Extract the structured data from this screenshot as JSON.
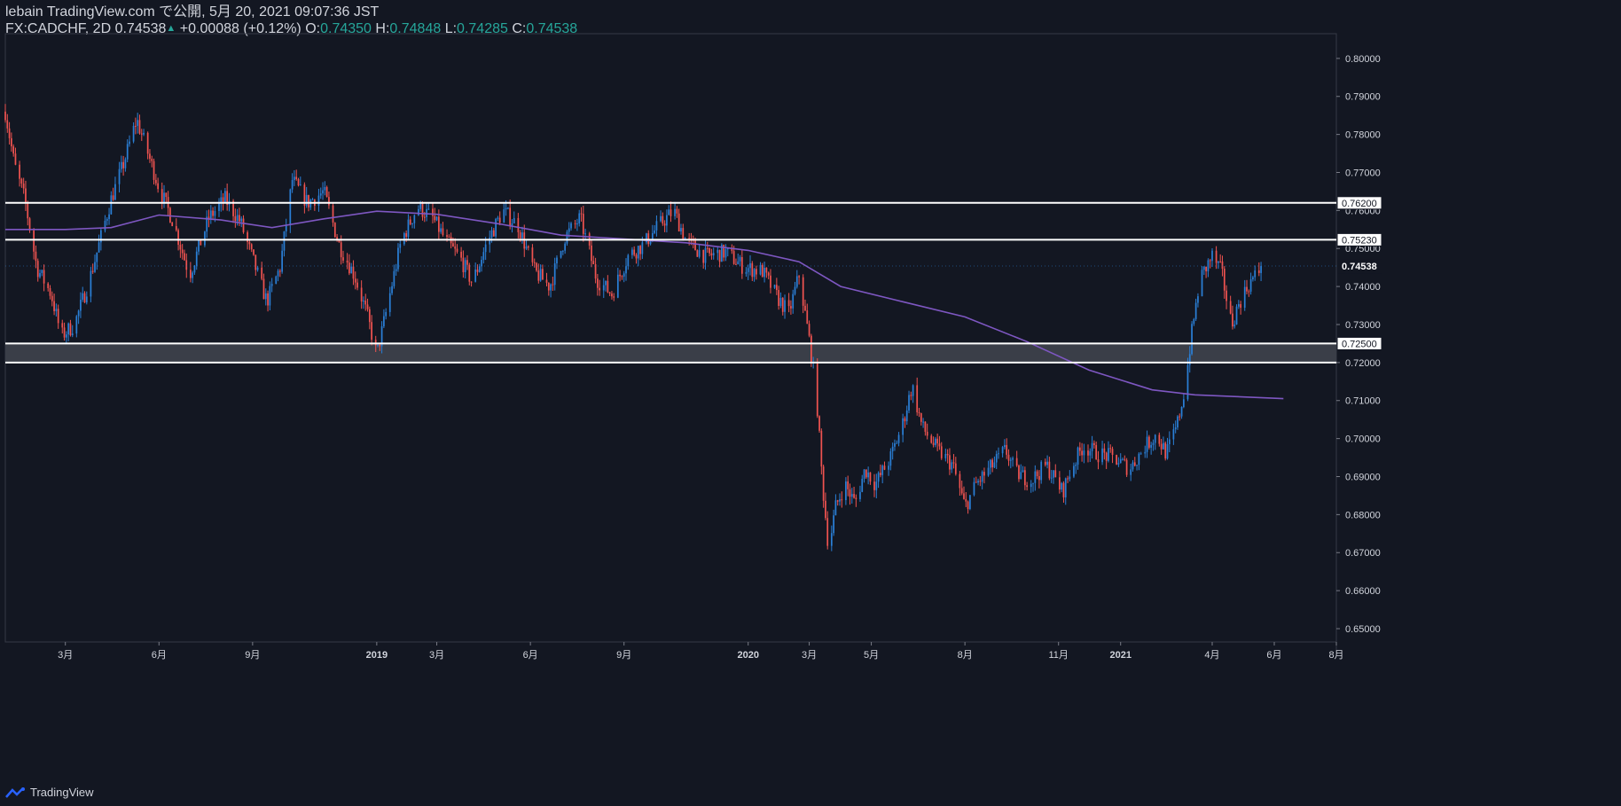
{
  "header": {
    "title": "lebain TradingView.com で公開, 5月 20, 2021 09:07:36 JST",
    "symbol": "FX:CADCHF, 2D",
    "last": "0.74538",
    "change": "+0.00088 (+0.12%)",
    "o_label": "O:",
    "o_value": "0.74350",
    "h_label": "H:",
    "h_value": "0.74848",
    "l_label": "L:",
    "l_value": "0.74285",
    "c_label": "C:",
    "c_value": "0.74538"
  },
  "footer": {
    "brand": "TradingView"
  },
  "colors": {
    "background": "#131722",
    "up": "#2a7fd6",
    "down": "#ef5350",
    "ma": "#7e57c2",
    "grid": "#2a2e39",
    "text": "#d1d4dc",
    "hline": "#ffffff",
    "zone": "#3a3e48",
    "header_value": "#26a69a"
  },
  "chart_data": {
    "type": "candlestick",
    "x": [
      "2018-01-01",
      "2021-08-01"
    ],
    "xlim": [
      "2018-01-01",
      "2021-08-01"
    ],
    "ylim": [
      0.6465,
      0.8065
    ],
    "y_ticks": [
      "0.65000",
      "0.66000",
      "0.67000",
      "0.68000",
      "0.69000",
      "0.70000",
      "0.71000",
      "0.72000",
      "0.73000",
      "0.74000",
      "0.75000",
      "0.76000",
      "0.77000",
      "0.78000",
      "0.79000",
      "0.80000"
    ],
    "x_ticks": [
      {
        "label": "3月",
        "date": "2018-03-01"
      },
      {
        "label": "6月",
        "date": "2018-06-01"
      },
      {
        "label": "9月",
        "date": "2018-09-01"
      },
      {
        "label": "2019",
        "date": "2019-01-01"
      },
      {
        "label": "3月",
        "date": "2019-03-01"
      },
      {
        "label": "6月",
        "date": "2019-06-01"
      },
      {
        "label": "9月",
        "date": "2019-09-01"
      },
      {
        "label": "2020",
        "date": "2020-01-01"
      },
      {
        "label": "3月",
        "date": "2020-03-01"
      },
      {
        "label": "5月",
        "date": "2020-05-01"
      },
      {
        "label": "8月",
        "date": "2020-08-01"
      },
      {
        "label": "11月",
        "date": "2020-11-01"
      },
      {
        "label": "2021",
        "date": "2021-01-01"
      },
      {
        "label": "4月",
        "date": "2021-04-01"
      },
      {
        "label": "6月",
        "date": "2021-06-01"
      },
      {
        "label": "8月",
        "date": "2021-08-01"
      }
    ],
    "price_path": [
      [
        "2018-01-01",
        0.786
      ],
      [
        "2018-01-10",
        0.772
      ],
      [
        "2018-01-20",
        0.763
      ],
      [
        "2018-02-01",
        0.745
      ],
      [
        "2018-02-15",
        0.738
      ],
      [
        "2018-02-25",
        0.727
      ],
      [
        "2018-03-10",
        0.73
      ],
      [
        "2018-03-25",
        0.742
      ],
      [
        "2018-04-05",
        0.753
      ],
      [
        "2018-04-15",
        0.763
      ],
      [
        "2018-04-28",
        0.773
      ],
      [
        "2018-05-10",
        0.784
      ],
      [
        "2018-05-20",
        0.776
      ],
      [
        "2018-06-01",
        0.766
      ],
      [
        "2018-06-15",
        0.757
      ],
      [
        "2018-07-01",
        0.743
      ],
      [
        "2018-07-20",
        0.758
      ],
      [
        "2018-08-05",
        0.763
      ],
      [
        "2018-08-20",
        0.757
      ],
      [
        "2018-09-05",
        0.744
      ],
      [
        "2018-09-15",
        0.736
      ],
      [
        "2018-09-28",
        0.745
      ],
      [
        "2018-10-10",
        0.768
      ],
      [
        "2018-10-25",
        0.762
      ],
      [
        "2018-11-10",
        0.765
      ],
      [
        "2018-11-25",
        0.751
      ],
      [
        "2018-12-10",
        0.743
      ],
      [
        "2018-12-22",
        0.733
      ],
      [
        "2019-01-01",
        0.722
      ],
      [
        "2019-01-10",
        0.733
      ],
      [
        "2019-01-25",
        0.752
      ],
      [
        "2019-02-10",
        0.761
      ],
      [
        "2019-02-25",
        0.758
      ],
      [
        "2019-03-10",
        0.752
      ],
      [
        "2019-03-25",
        0.747
      ],
      [
        "2019-04-05",
        0.741
      ],
      [
        "2019-04-20",
        0.752
      ],
      [
        "2019-05-05",
        0.76
      ],
      [
        "2019-05-20",
        0.756
      ],
      [
        "2019-06-05",
        0.744
      ],
      [
        "2019-06-20",
        0.74
      ],
      [
        "2019-07-05",
        0.753
      ],
      [
        "2019-07-20",
        0.758
      ],
      [
        "2019-08-05",
        0.742
      ],
      [
        "2019-08-20",
        0.738
      ],
      [
        "2019-09-05",
        0.748
      ],
      [
        "2019-09-20",
        0.751
      ],
      [
        "2019-10-05",
        0.756
      ],
      [
        "2019-10-20",
        0.76
      ],
      [
        "2019-11-01",
        0.752
      ],
      [
        "2019-11-20",
        0.748
      ],
      [
        "2019-12-10",
        0.749
      ],
      [
        "2019-12-28",
        0.745
      ],
      [
        "2020-01-15",
        0.744
      ],
      [
        "2020-01-30",
        0.737
      ],
      [
        "2020-02-10",
        0.733
      ],
      [
        "2020-02-20",
        0.743
      ],
      [
        "2020-03-01",
        0.726
      ],
      [
        "2020-03-08",
        0.712
      ],
      [
        "2020-03-14",
        0.688
      ],
      [
        "2020-03-20",
        0.671
      ],
      [
        "2020-03-27",
        0.682
      ],
      [
        "2020-04-05",
        0.688
      ],
      [
        "2020-04-15",
        0.683
      ],
      [
        "2020-04-25",
        0.692
      ],
      [
        "2020-05-05",
        0.688
      ],
      [
        "2020-05-20",
        0.695
      ],
      [
        "2020-06-01",
        0.704
      ],
      [
        "2020-06-10",
        0.714
      ],
      [
        "2020-06-20",
        0.703
      ],
      [
        "2020-07-05",
        0.697
      ],
      [
        "2020-07-20",
        0.693
      ],
      [
        "2020-08-01",
        0.682
      ],
      [
        "2020-08-12",
        0.688
      ],
      [
        "2020-08-25",
        0.692
      ],
      [
        "2020-09-10",
        0.697
      ],
      [
        "2020-09-20",
        0.691
      ],
      [
        "2020-10-05",
        0.689
      ],
      [
        "2020-10-20",
        0.693
      ],
      [
        "2020-11-05",
        0.686
      ],
      [
        "2020-11-15",
        0.693
      ],
      [
        "2020-11-25",
        0.698
      ],
      [
        "2020-12-10",
        0.696
      ],
      [
        "2020-12-25",
        0.695
      ],
      [
        "2021-01-10",
        0.692
      ],
      [
        "2021-01-25",
        0.698
      ],
      [
        "2021-02-05",
        0.701
      ],
      [
        "2021-02-15",
        0.696
      ],
      [
        "2021-02-25",
        0.703
      ],
      [
        "2021-03-05",
        0.713
      ],
      [
        "2021-03-12",
        0.728
      ],
      [
        "2021-03-20",
        0.742
      ],
      [
        "2021-04-01",
        0.748
      ],
      [
        "2021-04-10",
        0.744
      ],
      [
        "2021-04-20",
        0.73
      ],
      [
        "2021-04-28",
        0.736
      ],
      [
        "2021-05-08",
        0.741
      ],
      [
        "2021-05-20",
        0.745
      ]
    ],
    "ma_path": [
      [
        "2018-01-01",
        0.755
      ],
      [
        "2018-03-01",
        0.755
      ],
      [
        "2018-04-15",
        0.7555
      ],
      [
        "2018-06-01",
        0.7588
      ],
      [
        "2018-08-01",
        0.7575
      ],
      [
        "2018-09-20",
        0.7555
      ],
      [
        "2018-11-10",
        0.7578
      ],
      [
        "2019-01-01",
        0.7598
      ],
      [
        "2019-03-01",
        0.759
      ],
      [
        "2019-05-01",
        0.7565
      ],
      [
        "2019-07-01",
        0.7535
      ],
      [
        "2019-09-01",
        0.7525
      ],
      [
        "2019-11-01",
        0.7515
      ],
      [
        "2020-01-01",
        0.7495
      ],
      [
        "2020-02-20",
        0.7465
      ],
      [
        "2020-04-01",
        0.74
      ],
      [
        "2020-06-01",
        0.736
      ],
      [
        "2020-08-01",
        0.732
      ],
      [
        "2020-10-01",
        0.7255
      ],
      [
        "2020-12-01",
        0.718
      ],
      [
        "2021-02-01",
        0.7128
      ],
      [
        "2021-03-15",
        0.7115
      ],
      [
        "2021-06-01",
        0.7105
      ]
    ],
    "hlines": [
      {
        "label": "0.76200",
        "value": 0.762
      },
      {
        "label": "0.75230",
        "value": 0.7523
      },
      {
        "label": "0.72500",
        "value": 0.725
      }
    ],
    "hline_plain": [
      0.72
    ],
    "zone": [
      0.72,
      0.725
    ],
    "last_price_label": "0.74538",
    "last_price": 0.74538,
    "ma_end_date": "2021-06-10",
    "grid": false,
    "legend": "none"
  }
}
